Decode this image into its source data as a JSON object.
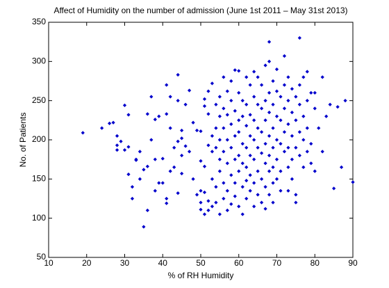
{
  "chart_data": {
    "type": "scatter",
    "title": "Affect of Humidity on the number of admission (June 1st 2011 – May 31st 2013)",
    "x_label": "% of RH Humidity",
    "y_label": "No. of Patients",
    "xlim": [
      10,
      90
    ],
    "xticks": [
      10,
      20,
      30,
      40,
      50,
      60,
      70,
      80,
      90
    ],
    "ylim": [
      50,
      350
    ],
    "yticks": [
      50,
      100,
      150,
      200,
      250,
      300,
      350
    ],
    "grid": false,
    "color": "#0000cc",
    "x": [
      19,
      24,
      26,
      27,
      28,
      28,
      28,
      29,
      30,
      30,
      31,
      31,
      31,
      32,
      32,
      33,
      33,
      34,
      34,
      35,
      35,
      36,
      36,
      36,
      37,
      37,
      38,
      38,
      38,
      39,
      39,
      40,
      40,
      41,
      41,
      41,
      41,
      42,
      42,
      42,
      43,
      43,
      44,
      44,
      44,
      44,
      45,
      45,
      45,
      45,
      46,
      46,
      47,
      47,
      48,
      48,
      49,
      49,
      50,
      50,
      50,
      50,
      50,
      51,
      51,
      51,
      51,
      51,
      52,
      52,
      52,
      52,
      52,
      53,
      53,
      53,
      53,
      53,
      54,
      54,
      54,
      54,
      54,
      55,
      55,
      55,
      55,
      55,
      55,
      56,
      56,
      56,
      56,
      56,
      56,
      57,
      57,
      57,
      57,
      57,
      57,
      58,
      58,
      58,
      58,
      58,
      58,
      59,
      59,
      59,
      59,
      59,
      59,
      60,
      60,
      60,
      60,
      60,
      60,
      60,
      61,
      61,
      61,
      61,
      61,
      61,
      62,
      62,
      62,
      62,
      62,
      62,
      62,
      63,
      63,
      63,
      63,
      63,
      63,
      64,
      64,
      64,
      64,
      64,
      64,
      64,
      65,
      65,
      65,
      65,
      65,
      65,
      66,
      66,
      66,
      66,
      66,
      66,
      67,
      67,
      67,
      67,
      67,
      67,
      67,
      68,
      68,
      68,
      68,
      68,
      68,
      68,
      68,
      69,
      69,
      69,
      69,
      69,
      69,
      69,
      70,
      70,
      70,
      70,
      70,
      70,
      71,
      71,
      71,
      71,
      71,
      72,
      72,
      72,
      72,
      72,
      73,
      73,
      73,
      73,
      73,
      73,
      74,
      74,
      74,
      74,
      74,
      75,
      75,
      75,
      75,
      75,
      76,
      76,
      76,
      76,
      76,
      77,
      77,
      77,
      77,
      78,
      78,
      78,
      78,
      79,
      79,
      79,
      80,
      80,
      80,
      81,
      82,
      82,
      83,
      84,
      85,
      86,
      87,
      88,
      90
    ],
    "values": [
      209,
      215,
      221,
      222,
      205,
      193,
      187,
      198,
      187,
      244,
      156,
      232,
      191,
      125,
      140,
      175,
      174,
      185,
      150,
      89,
      162,
      110,
      233,
      166,
      255,
      200,
      226,
      175,
      135,
      230,
      145,
      145,
      176,
      270,
      119,
      125,
      233,
      160,
      255,
      215,
      190,
      165,
      283,
      250,
      198,
      132,
      212,
      180,
      157,
      202,
      245,
      192,
      185,
      263,
      150,
      222,
      212,
      130,
      111,
      120,
      135,
      173,
      211,
      105,
      133,
      166,
      243,
      252,
      110,
      193,
      233,
      262,
      122,
      185,
      205,
      150,
      272,
      115,
      190,
      215,
      140,
      245,
      120,
      255,
      175,
      230,
      160,
      105,
      200,
      280,
      215,
      185,
      145,
      125,
      240,
      262,
      232,
      200,
      170,
      135,
      110,
      275,
      220,
      190,
      155,
      118,
      250,
      289,
      237,
      205,
      175,
      145,
      128,
      288,
      260,
      225,
      210,
      180,
      160,
      115,
      250,
      230,
      195,
      170,
      140,
      105,
      280,
      245,
      218,
      190,
      165,
      148,
      125,
      270,
      232,
      205,
      180,
      155,
      135,
      287,
      255,
      225,
      200,
      175,
      145,
      115,
      280,
      245,
      215,
      190,
      160,
      130,
      270,
      240,
      210,
      183,
      150,
      120,
      295,
      250,
      225,
      195,
      170,
      140,
      112,
      325,
      300,
      260,
      235,
      205,
      180,
      160,
      130,
      275,
      245,
      215,
      190,
      165,
      145,
      120,
      290,
      262,
      230,
      200,
      175,
      150,
      255,
      225,
      195,
      160,
      135,
      307,
      270,
      240,
      210,
      185,
      280,
      250,
      220,
      190,
      165,
      135,
      265,
      235,
      205,
      175,
      150,
      255,
      225,
      190,
      130,
      120,
      330,
      270,
      245,
      210,
      180,
      280,
      230,
      200,
      165,
      287,
      250,
      215,
      185,
      260,
      195,
      170,
      260,
      240,
      160,
      215,
      280,
      185,
      230,
      245,
      138,
      242,
      165,
      250,
      146
    ]
  }
}
